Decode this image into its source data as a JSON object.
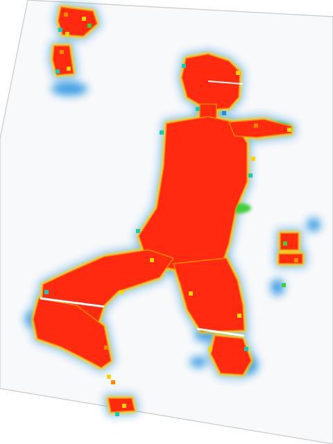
{
  "image": {
    "kind": "pressure-heatmap-figure",
    "description_visible_text": "",
    "palette": {
      "background": "#ffffff",
      "sheet": "#f8f9fa",
      "sheet_edge": "#c9c9c9",
      "low": "#1e8fe0",
      "low_halo": "#a9d8f5",
      "mid": "#19c9b0",
      "mid_high": "#3fcf3a",
      "high": "#ffd200",
      "very_high": "#ff8a00",
      "max": "#ff2a10"
    },
    "regions": [
      {
        "name": "head"
      },
      {
        "name": "torso"
      },
      {
        "name": "shoulder-arm"
      },
      {
        "name": "left-leg"
      },
      {
        "name": "right-leg"
      },
      {
        "name": "left-foot"
      },
      {
        "name": "right-foot"
      },
      {
        "name": "top-left-fragment"
      },
      {
        "name": "mid-right-fragment"
      },
      {
        "name": "bottom-fragment"
      }
    ]
  }
}
